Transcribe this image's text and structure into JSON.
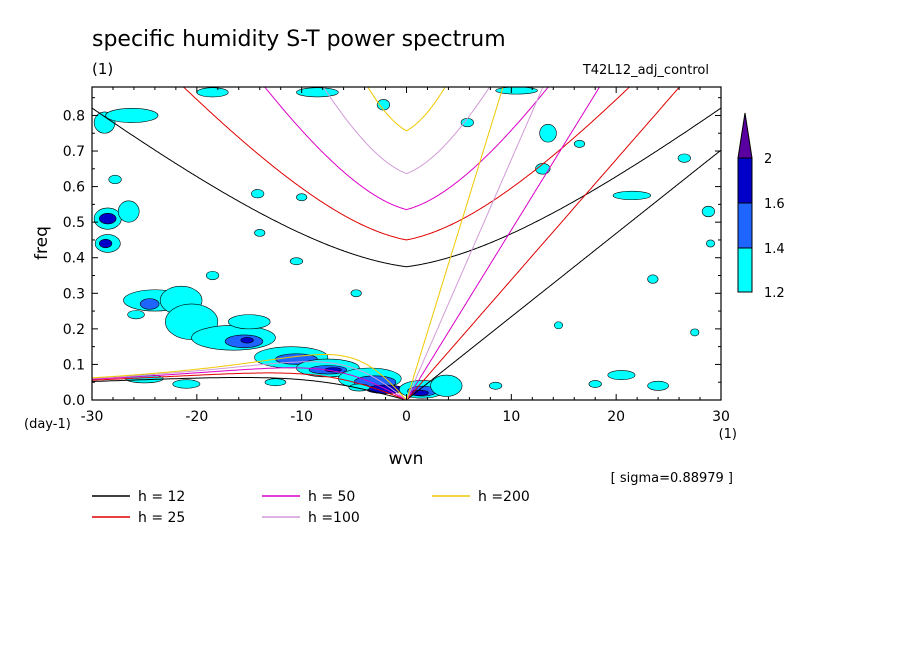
{
  "chart_data": {
    "type": "heatmap",
    "title": "specific humidity S-T power spectrum",
    "subtitle_left": "(1)",
    "subtitle_right": "T42L12_adj_control",
    "xlabel": "wvn",
    "ylabel": "freq",
    "x_unit": "(1)",
    "y_unit": "(day-1)",
    "annotation": "[ sigma=0.88979 ]",
    "xlim": [
      -30,
      30
    ],
    "ylim": [
      0,
      0.88
    ],
    "xticks": [
      -30,
      -20,
      -10,
      0,
      10,
      20,
      30
    ],
    "xtick_labels": [
      "-30",
      "-20",
      "-10",
      "0",
      "10",
      "20",
      "30"
    ],
    "yticks": [
      0,
      0.1,
      0.2,
      0.3,
      0.4,
      0.5,
      0.6,
      0.7,
      0.8
    ],
    "ytick_labels": [
      "0.0",
      "0.1",
      "0.2",
      "0.3",
      "0.4",
      "0.5",
      "0.6",
      "0.7",
      "0.8"
    ],
    "grid": false,
    "legend_position": "bottom-left",
    "colorbar": {
      "levels": [
        1.2,
        1.4,
        1.6,
        2
      ],
      "labels": [
        "1.2",
        "1.4",
        "1.6",
        "2"
      ],
      "colors": [
        "#00ffff",
        "#1e64ff",
        "#0000c8",
        "#5a00a0"
      ]
    },
    "contour_regions": [
      {
        "level": 1.2,
        "x": -28.5,
        "y": 0.44,
        "rx": 1.2,
        "ry": 0.025
      },
      {
        "level": 1.6,
        "x": -28.7,
        "y": 0.44,
        "rx": 0.6,
        "ry": 0.012
      },
      {
        "level": 1.2,
        "x": -28.5,
        "y": 0.51,
        "rx": 1.3,
        "ry": 0.03
      },
      {
        "level": 1.6,
        "x": -28.5,
        "y": 0.51,
        "rx": 0.8,
        "ry": 0.015
      },
      {
        "level": 1.2,
        "x": -26.5,
        "y": 0.53,
        "rx": 1.0,
        "ry": 0.03
      },
      {
        "level": 1.2,
        "x": -28.8,
        "y": 0.78,
        "rx": 1.0,
        "ry": 0.03
      },
      {
        "level": 1.2,
        "x": -26.2,
        "y": 0.8,
        "rx": 2.5,
        "ry": 0.02
      },
      {
        "level": 1.2,
        "x": -24.0,
        "y": 0.28,
        "rx": 3.0,
        "ry": 0.03
      },
      {
        "level": 1.2,
        "x": -21.5,
        "y": 0.28,
        "rx": 2.0,
        "ry": 0.04
      },
      {
        "level": 1.2,
        "x": -20.5,
        "y": 0.22,
        "rx": 2.5,
        "ry": 0.05
      },
      {
        "level": 1.4,
        "x": -24.5,
        "y": 0.27,
        "rx": 0.9,
        "ry": 0.015
      },
      {
        "level": 1.2,
        "x": -16.5,
        "y": 0.175,
        "rx": 4.0,
        "ry": 0.035
      },
      {
        "level": 1.4,
        "x": -15.5,
        "y": 0.165,
        "rx": 1.8,
        "ry": 0.018
      },
      {
        "level": 1.6,
        "x": -15.2,
        "y": 0.168,
        "rx": 0.6,
        "ry": 0.008
      },
      {
        "level": 1.2,
        "x": -15.0,
        "y": 0.22,
        "rx": 2.0,
        "ry": 0.02
      },
      {
        "level": 1.2,
        "x": -11.0,
        "y": 0.12,
        "rx": 3.5,
        "ry": 0.03
      },
      {
        "level": 1.4,
        "x": -10.5,
        "y": 0.115,
        "rx": 2.0,
        "ry": 0.015
      },
      {
        "level": 1.2,
        "x": -7.5,
        "y": 0.09,
        "rx": 3.0,
        "ry": 0.025
      },
      {
        "level": 1.4,
        "x": -7.5,
        "y": 0.085,
        "rx": 1.8,
        "ry": 0.012
      },
      {
        "level": 1.6,
        "x": -7.0,
        "y": 0.085,
        "rx": 0.8,
        "ry": 0.006
      },
      {
        "level": 1.2,
        "x": -3.5,
        "y": 0.06,
        "rx": 3.0,
        "ry": 0.03
      },
      {
        "level": 1.4,
        "x": -3.0,
        "y": 0.05,
        "rx": 2.0,
        "ry": 0.018
      },
      {
        "level": 1.6,
        "x": -2.0,
        "y": 0.03,
        "rx": 1.8,
        "ry": 0.012
      },
      {
        "level": 1.2,
        "x": 1.5,
        "y": 0.03,
        "rx": 2.2,
        "ry": 0.025
      },
      {
        "level": 1.4,
        "x": 1.5,
        "y": 0.025,
        "rx": 1.4,
        "ry": 0.014
      },
      {
        "level": 1.6,
        "x": 1.2,
        "y": 0.02,
        "rx": 0.9,
        "ry": 0.008
      },
      {
        "level": 1.2,
        "x": 3.8,
        "y": 0.04,
        "rx": 1.5,
        "ry": 0.03
      },
      {
        "level": 1.2,
        "x": -21.0,
        "y": 0.045,
        "rx": 1.3,
        "ry": 0.012
      },
      {
        "level": 1.2,
        "x": -25.8,
        "y": 0.24,
        "rx": 0.8,
        "ry": 0.012
      },
      {
        "level": 1.2,
        "x": -18.5,
        "y": 0.35,
        "rx": 0.6,
        "ry": 0.012
      },
      {
        "level": 1.2,
        "x": -10.5,
        "y": 0.39,
        "rx": 0.6,
        "ry": 0.01
      },
      {
        "level": 1.2,
        "x": -14.0,
        "y": 0.47,
        "rx": 0.5,
        "ry": 0.01
      },
      {
        "level": 1.2,
        "x": -14.2,
        "y": 0.58,
        "rx": 0.6,
        "ry": 0.012
      },
      {
        "level": 1.2,
        "x": -27.8,
        "y": 0.62,
        "rx": 0.6,
        "ry": 0.012
      },
      {
        "level": 1.2,
        "x": -25.0,
        "y": 0.06,
        "rx": 1.8,
        "ry": 0.012
      },
      {
        "level": 1.2,
        "x": -10.0,
        "y": 0.57,
        "rx": 0.5,
        "ry": 0.01
      },
      {
        "level": 1.2,
        "x": -4.8,
        "y": 0.3,
        "rx": 0.5,
        "ry": 0.01
      },
      {
        "level": 1.2,
        "x": -2.2,
        "y": 0.83,
        "rx": 0.6,
        "ry": 0.015
      },
      {
        "level": 1.2,
        "x": -8.5,
        "y": 0.865,
        "rx": 2.0,
        "ry": 0.013
      },
      {
        "level": 1.2,
        "x": -18.5,
        "y": 0.865,
        "rx": 1.5,
        "ry": 0.013
      },
      {
        "level": 1.2,
        "x": 5.8,
        "y": 0.78,
        "rx": 0.6,
        "ry": 0.012
      },
      {
        "level": 1.2,
        "x": 10.5,
        "y": 0.87,
        "rx": 2.0,
        "ry": 0.01
      },
      {
        "level": 1.2,
        "x": 13.5,
        "y": 0.75,
        "rx": 0.8,
        "ry": 0.025
      },
      {
        "level": 1.2,
        "x": 13.0,
        "y": 0.65,
        "rx": 0.7,
        "ry": 0.015
      },
      {
        "level": 1.2,
        "x": 16.5,
        "y": 0.72,
        "rx": 0.5,
        "ry": 0.01
      },
      {
        "level": 1.2,
        "x": 21.5,
        "y": 0.575,
        "rx": 1.8,
        "ry": 0.012
      },
      {
        "level": 1.2,
        "x": 26.5,
        "y": 0.68,
        "rx": 0.6,
        "ry": 0.012
      },
      {
        "level": 1.2,
        "x": 23.5,
        "y": 0.34,
        "rx": 0.5,
        "ry": 0.012
      },
      {
        "level": 1.2,
        "x": 28.8,
        "y": 0.53,
        "rx": 0.6,
        "ry": 0.015
      },
      {
        "level": 1.2,
        "x": 29.0,
        "y": 0.44,
        "rx": 0.4,
        "ry": 0.01
      },
      {
        "level": 1.2,
        "x": 20.5,
        "y": 0.07,
        "rx": 1.3,
        "ry": 0.013
      },
      {
        "level": 1.2,
        "x": 24.0,
        "y": 0.04,
        "rx": 1.0,
        "ry": 0.013
      },
      {
        "level": 1.2,
        "x": 8.5,
        "y": 0.04,
        "rx": 0.6,
        "ry": 0.01
      },
      {
        "level": 1.2,
        "x": 18.0,
        "y": 0.045,
        "rx": 0.6,
        "ry": 0.01
      },
      {
        "level": 1.2,
        "x": 14.5,
        "y": 0.21,
        "rx": 0.4,
        "ry": 0.01
      },
      {
        "level": 1.2,
        "x": 27.5,
        "y": 0.19,
        "rx": 0.4,
        "ry": 0.01
      },
      {
        "level": 1.2,
        "x": -12.5,
        "y": 0.05,
        "rx": 1.0,
        "ry": 0.01
      },
      {
        "level": 1.2,
        "x": -4.5,
        "y": 0.035,
        "rx": 1.0,
        "ry": 0.01
      }
    ],
    "series": [
      {
        "name": "h = 12",
        "color": "#000000",
        "h": 12
      },
      {
        "name": "h = 25",
        "color": "#e00000",
        "h": 25
      },
      {
        "name": "h = 50",
        "color": "#dc00c8",
        "h": 50
      },
      {
        "name": "h =100",
        "color": "#d29bd7",
        "h": 100
      },
      {
        "name": "h =200",
        "color": "#f0c800",
        "h": 200
      }
    ]
  }
}
